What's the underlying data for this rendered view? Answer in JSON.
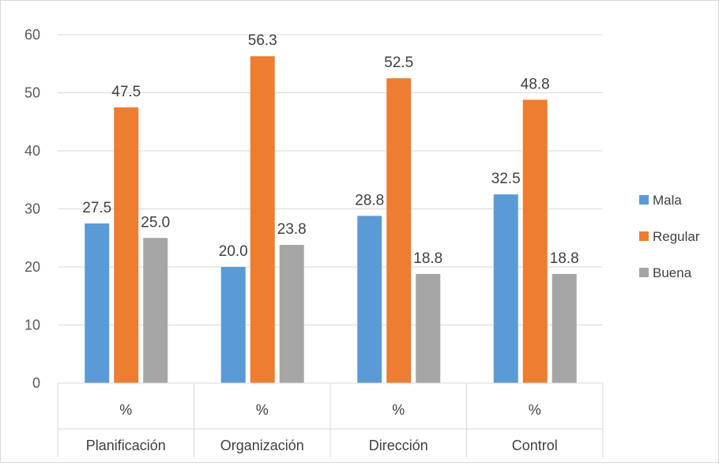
{
  "chart_data": {
    "type": "bar",
    "title": "",
    "xlabel": "",
    "ylabel": "",
    "ylim": [
      0,
      60
    ],
    "yticks": [
      0,
      10,
      20,
      30,
      40,
      50,
      60
    ],
    "grid": true,
    "legend_position": "right",
    "categories": [
      {
        "unit": "%",
        "name": "Planificación"
      },
      {
        "unit": "%",
        "name": "Organización"
      },
      {
        "unit": "%",
        "name": "Dirección"
      },
      {
        "unit": "%",
        "name": "Control"
      }
    ],
    "series": [
      {
        "name": "Mala",
        "color": "#5b9bd5",
        "values": [
          27.5,
          20.0,
          28.8,
          32.5
        ],
        "labels": [
          "27.5",
          "20.0",
          "28.8",
          "32.5"
        ]
      },
      {
        "name": "Regular",
        "color": "#ed7d31",
        "values": [
          47.5,
          56.3,
          52.5,
          48.8
        ],
        "labels": [
          "47.5",
          "56.3",
          "52.5",
          "48.8"
        ]
      },
      {
        "name": "Buena",
        "color": "#a5a5a5",
        "values": [
          25.0,
          23.8,
          18.8,
          18.8
        ],
        "labels": [
          "25.0",
          "23.8",
          "18.8",
          "18.8"
        ]
      }
    ]
  }
}
